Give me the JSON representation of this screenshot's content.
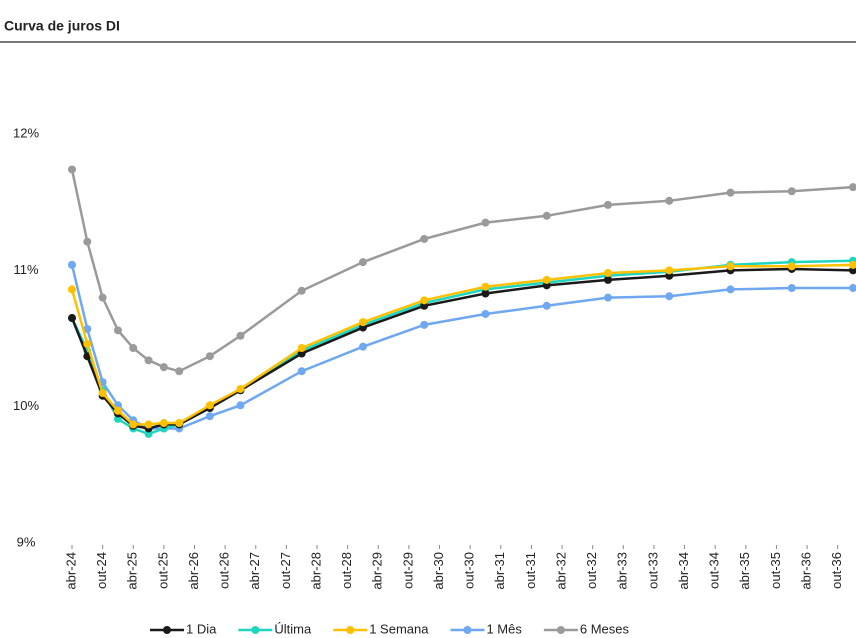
{
  "chart_data": {
    "type": "line",
    "title": "Curva de juros DI",
    "x": [
      "2024-04",
      "2024-07",
      "2024-10",
      "2025-01",
      "2025-04",
      "2025-07",
      "2025-10",
      "2026-01",
      "2026-07",
      "2027-01",
      "2028-01",
      "2029-01",
      "2030-01",
      "2031-01",
      "2032-01",
      "2033-01",
      "2034-01",
      "2035-01",
      "2036-01",
      "2037-01"
    ],
    "xlim": [
      "2024-04",
      "2037-01"
    ],
    "xticks": [
      {
        "value": "2024-04",
        "label": "abr-24"
      },
      {
        "value": "2024-10",
        "label": "out-24"
      },
      {
        "value": "2025-04",
        "label": "abr-25"
      },
      {
        "value": "2025-10",
        "label": "out-25"
      },
      {
        "value": "2026-04",
        "label": "abr-26"
      },
      {
        "value": "2026-10",
        "label": "out-26"
      },
      {
        "value": "2027-04",
        "label": "abr-27"
      },
      {
        "value": "2027-10",
        "label": "out-27"
      },
      {
        "value": "2028-04",
        "label": "abr-28"
      },
      {
        "value": "2028-10",
        "label": "out-28"
      },
      {
        "value": "2029-04",
        "label": "abr-29"
      },
      {
        "value": "2029-10",
        "label": "out-29"
      },
      {
        "value": "2030-04",
        "label": "abr-30"
      },
      {
        "value": "2030-10",
        "label": "out-30"
      },
      {
        "value": "2031-04",
        "label": "abr-31"
      },
      {
        "value": "2031-10",
        "label": "out-31"
      },
      {
        "value": "2032-04",
        "label": "abr-32"
      },
      {
        "value": "2032-10",
        "label": "out-32"
      },
      {
        "value": "2033-04",
        "label": "abr-33"
      },
      {
        "value": "2033-10",
        "label": "out-33"
      },
      {
        "value": "2034-04",
        "label": "abr-34"
      },
      {
        "value": "2034-10",
        "label": "out-34"
      },
      {
        "value": "2035-04",
        "label": "abr-35"
      },
      {
        "value": "2035-10",
        "label": "out-35"
      },
      {
        "value": "2036-04",
        "label": "abr-36"
      },
      {
        "value": "2036-10",
        "label": "out-36"
      }
    ],
    "ylim": [
      9,
      12
    ],
    "yticks": [
      {
        "value": 9,
        "label": "9%"
      },
      {
        "value": 10,
        "label": "10%"
      },
      {
        "value": 11,
        "label": "11%"
      },
      {
        "value": 12,
        "label": "12%"
      }
    ],
    "series": [
      {
        "name": "6 Meses",
        "color": "#9a9a9a",
        "values": [
          11.74,
          11.21,
          10.8,
          10.56,
          10.43,
          10.34,
          10.29,
          10.26,
          10.37,
          10.52,
          10.85,
          11.06,
          11.23,
          11.35,
          11.4,
          11.48,
          11.51,
          11.57,
          11.58,
          11.61
        ]
      },
      {
        "name": "1 Mês",
        "color": "#6fa8f0",
        "values": [
          11.04,
          10.57,
          10.18,
          10.01,
          9.9,
          9.84,
          9.84,
          9.84,
          9.93,
          10.01,
          10.26,
          10.44,
          10.6,
          10.68,
          10.74,
          10.8,
          10.81,
          10.86,
          10.87,
          10.87
        ]
      },
      {
        "name": "Última",
        "color": "#1ed6c0",
        "values": [
          10.65,
          10.41,
          10.12,
          9.91,
          9.84,
          9.8,
          9.84,
          9.87,
          9.99,
          10.12,
          10.41,
          10.6,
          10.76,
          10.86,
          10.91,
          10.96,
          10.99,
          11.04,
          11.06,
          11.07
        ]
      },
      {
        "name": "1 Dia",
        "color": "#1a1a1a",
        "values": [
          10.65,
          10.37,
          10.08,
          9.95,
          9.86,
          9.84,
          9.87,
          9.87,
          9.99,
          10.12,
          10.39,
          10.58,
          10.74,
          10.83,
          10.89,
          10.93,
          10.96,
          11.0,
          11.01,
          11.0
        ]
      },
      {
        "name": "1 Semana",
        "color": "#ffc000",
        "values": [
          10.86,
          10.46,
          10.1,
          9.97,
          9.87,
          9.87,
          9.88,
          9.88,
          10.01,
          10.13,
          10.43,
          10.62,
          10.78,
          10.88,
          10.93,
          10.98,
          11.0,
          11.03,
          11.03,
          11.04
        ]
      }
    ],
    "legend_order": [
      "1 Dia",
      "Última",
      "1 Semana",
      "1 Mês",
      "6 Meses"
    ]
  }
}
